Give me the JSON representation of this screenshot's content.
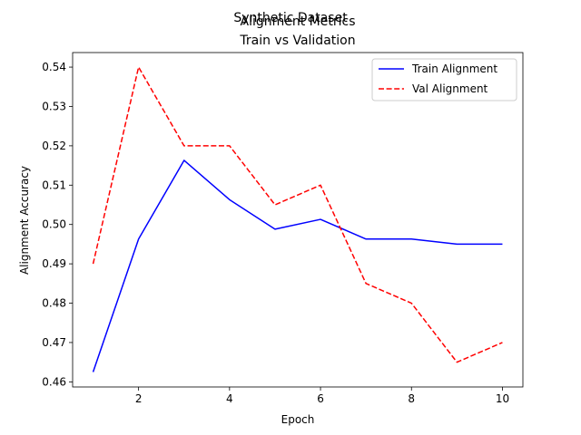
{
  "chart_data": {
    "type": "line",
    "suptitle": "Synthetic Dataset",
    "title": "Alignment Metrics\nTrain vs Validation",
    "xlabel": "Epoch",
    "ylabel": "Alignment Accuracy",
    "x": [
      1,
      2,
      3,
      4,
      5,
      6,
      7,
      8,
      9,
      10
    ],
    "xlim": [
      0.55,
      10.45
    ],
    "ylim": [
      0.4587,
      0.5437
    ],
    "xticks": [
      2,
      4,
      6,
      8,
      10
    ],
    "yticks": [
      0.46,
      0.47,
      0.48,
      0.49,
      0.5,
      0.51,
      0.52,
      0.53,
      0.54
    ],
    "grid": false,
    "legend_position": "top-right",
    "series": [
      {
        "name": "Train Alignment",
        "color": "#0000ff",
        "style": "solid",
        "values": [
          0.4625,
          0.4963,
          0.5163,
          0.5063,
          0.4988,
          0.5013,
          0.4963,
          0.4963,
          0.495,
          0.495
        ]
      },
      {
        "name": "Val Alignment",
        "color": "#ff0000",
        "style": "dashed",
        "values": [
          0.49,
          0.54,
          0.52,
          0.52,
          0.505,
          0.51,
          0.485,
          0.48,
          0.465,
          0.47
        ]
      }
    ]
  }
}
